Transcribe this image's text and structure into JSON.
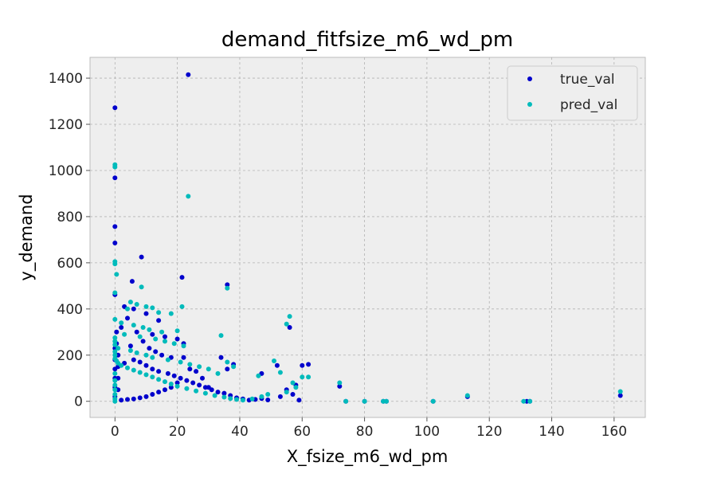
{
  "chart_data": {
    "type": "scatter",
    "title": "demand_fitfsize_m6_wd_pm",
    "xlabel": "X_fsize_m6_wd_pm",
    "ylabel": "y_demand",
    "xlim": [
      -8,
      170
    ],
    "ylim": [
      -70,
      1490
    ],
    "xticks": [
      0,
      20,
      40,
      60,
      80,
      100,
      120,
      140,
      160
    ],
    "yticks": [
      0,
      200,
      400,
      600,
      800,
      1000,
      1200,
      1400
    ],
    "grid": true,
    "legend_position": "top-right",
    "series": [
      {
        "name": "true_val",
        "color": "#0000cc",
        "points": [
          [
            23.5,
            1415
          ],
          [
            0,
            1272
          ],
          [
            0,
            968
          ],
          [
            0,
            757
          ],
          [
            0,
            686
          ],
          [
            8.5,
            625
          ],
          [
            21.5,
            537
          ],
          [
            36,
            505
          ],
          [
            5.5,
            520
          ],
          [
            0,
            462
          ],
          [
            3,
            410
          ],
          [
            6,
            400
          ],
          [
            10,
            380
          ],
          [
            4,
            360
          ],
          [
            14,
            350
          ],
          [
            2,
            320
          ],
          [
            7,
            300
          ],
          [
            12,
            290
          ],
          [
            16,
            280
          ],
          [
            20,
            270
          ],
          [
            22,
            250
          ],
          [
            9,
            260
          ],
          [
            5,
            240
          ],
          [
            11,
            230
          ],
          [
            13,
            215
          ],
          [
            15,
            200
          ],
          [
            18,
            190
          ],
          [
            6,
            180
          ],
          [
            8,
            170
          ],
          [
            3,
            165
          ],
          [
            10,
            155
          ],
          [
            12,
            140
          ],
          [
            14,
            130
          ],
          [
            17,
            120
          ],
          [
            19,
            110
          ],
          [
            21,
            100
          ],
          [
            23,
            90
          ],
          [
            25,
            80
          ],
          [
            27,
            70
          ],
          [
            29,
            60
          ],
          [
            31,
            50
          ],
          [
            33,
            40
          ],
          [
            35,
            35
          ],
          [
            37,
            25
          ],
          [
            39,
            15
          ],
          [
            41,
            10
          ],
          [
            43,
            5
          ],
          [
            45,
            8
          ],
          [
            47,
            12
          ],
          [
            49,
            6
          ],
          [
            56,
            320
          ],
          [
            52,
            155
          ],
          [
            47,
            120
          ],
          [
            60,
            155
          ],
          [
            62,
            160
          ],
          [
            58,
            70
          ],
          [
            55,
            50
          ],
          [
            53,
            20
          ],
          [
            57,
            30
          ],
          [
            59,
            5
          ],
          [
            36,
            140
          ],
          [
            38,
            160
          ],
          [
            34,
            190
          ],
          [
            30,
            60
          ],
          [
            28,
            100
          ],
          [
            26,
            130
          ],
          [
            24,
            140
          ],
          [
            22,
            190
          ],
          [
            20,
            80
          ],
          [
            18,
            60
          ],
          [
            16,
            50
          ],
          [
            14,
            40
          ],
          [
            12,
            30
          ],
          [
            10,
            20
          ],
          [
            8,
            15
          ],
          [
            6,
            10
          ],
          [
            4,
            8
          ],
          [
            2,
            5
          ],
          [
            1,
            50
          ],
          [
            1,
            100
          ],
          [
            1,
            150
          ],
          [
            1,
            200
          ],
          [
            0.5,
            250
          ],
          [
            0.5,
            300
          ],
          [
            0,
            230
          ],
          [
            0,
            180
          ],
          [
            0,
            140
          ],
          [
            0,
            100
          ],
          [
            0,
            60
          ],
          [
            0,
            20
          ],
          [
            72,
            65
          ],
          [
            74,
            0
          ],
          [
            80,
            0
          ],
          [
            86,
            0
          ],
          [
            87,
            0
          ],
          [
            102,
            0
          ],
          [
            113,
            20
          ],
          [
            132,
            0
          ],
          [
            133,
            0
          ],
          [
            162,
            25
          ]
        ]
      },
      {
        "name": "pred_val",
        "color": "#00bbbb",
        "points": [
          [
            0,
            1025
          ],
          [
            0,
            1015
          ],
          [
            23.5,
            888
          ],
          [
            0,
            605
          ],
          [
            0,
            595
          ],
          [
            0.5,
            550
          ],
          [
            36,
            490
          ],
          [
            8.5,
            495
          ],
          [
            0,
            470
          ],
          [
            56,
            368
          ],
          [
            21.5,
            410
          ],
          [
            5,
            430
          ],
          [
            7,
            420
          ],
          [
            10,
            410
          ],
          [
            12,
            405
          ],
          [
            4,
            400
          ],
          [
            14,
            385
          ],
          [
            18,
            380
          ],
          [
            0,
            355
          ],
          [
            34,
            285
          ],
          [
            55,
            335
          ],
          [
            2,
            340
          ],
          [
            6,
            330
          ],
          [
            9,
            320
          ],
          [
            11,
            310
          ],
          [
            15,
            300
          ],
          [
            20,
            305
          ],
          [
            3,
            290
          ],
          [
            8,
            280
          ],
          [
            13,
            270
          ],
          [
            16,
            260
          ],
          [
            19,
            250
          ],
          [
            22,
            240
          ],
          [
            1,
            230
          ],
          [
            5,
            220
          ],
          [
            7,
            210
          ],
          [
            10,
            200
          ],
          [
            12,
            190
          ],
          [
            17,
            180
          ],
          [
            21,
            170
          ],
          [
            24,
            160
          ],
          [
            27,
            150
          ],
          [
            30,
            140
          ],
          [
            33,
            120
          ],
          [
            36,
            170
          ],
          [
            38,
            150
          ],
          [
            46,
            110
          ],
          [
            51,
            175
          ],
          [
            53,
            125
          ],
          [
            57,
            80
          ],
          [
            60,
            105
          ],
          [
            62,
            105
          ],
          [
            58,
            60
          ],
          [
            55,
            40
          ],
          [
            49,
            30
          ],
          [
            47,
            20
          ],
          [
            44,
            10
          ],
          [
            41,
            5
          ],
          [
            39,
            8
          ],
          [
            37,
            12
          ],
          [
            35,
            18
          ],
          [
            32,
            25
          ],
          [
            29,
            35
          ],
          [
            26,
            45
          ],
          [
            23,
            55
          ],
          [
            20,
            65
          ],
          [
            18,
            75
          ],
          [
            16,
            85
          ],
          [
            14,
            95
          ],
          [
            12,
            105
          ],
          [
            10,
            115
          ],
          [
            8,
            125
          ],
          [
            6,
            135
          ],
          [
            4,
            145
          ],
          [
            2,
            155
          ],
          [
            1,
            165
          ],
          [
            0.5,
            175
          ],
          [
            0,
            185
          ],
          [
            0,
            200
          ],
          [
            0,
            215
          ],
          [
            0,
            245
          ],
          [
            0,
            260
          ],
          [
            0,
            275
          ],
          [
            0,
            120
          ],
          [
            0,
            90
          ],
          [
            0,
            70
          ],
          [
            0,
            50
          ],
          [
            0,
            30
          ],
          [
            0,
            10
          ],
          [
            0,
            0
          ],
          [
            72,
            80
          ],
          [
            74,
            0
          ],
          [
            80,
            0
          ],
          [
            86,
            0
          ],
          [
            87,
            0
          ],
          [
            102,
            0
          ],
          [
            113,
            25
          ],
          [
            131,
            0
          ],
          [
            133,
            0
          ],
          [
            162,
            42
          ]
        ]
      }
    ]
  }
}
